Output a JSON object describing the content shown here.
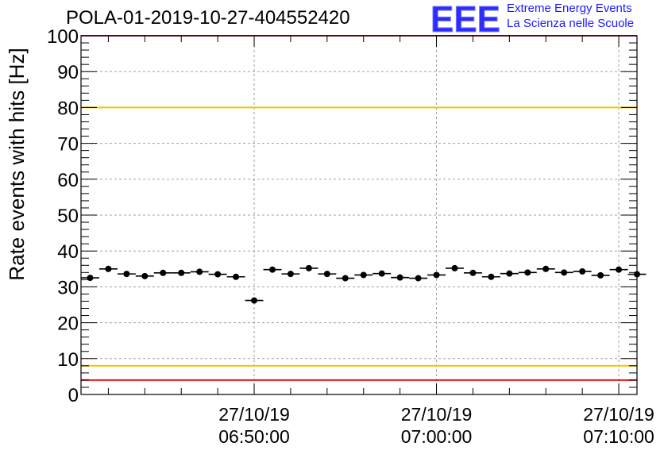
{
  "header": {
    "title": "POLA-01-2019-10-27-404552420"
  },
  "logo": {
    "letters": "EEE",
    "line1": "Extreme Energy Events",
    "line2": "La Scienza nelle Scuole",
    "color": "#1a1aff"
  },
  "chart_data": {
    "type": "scatter",
    "title": "POLA-01-2019-10-27-404552420",
    "xlabel": "",
    "ylabel": "Rate events with hits [Hz]",
    "ylim": [
      0,
      100
    ],
    "xlim": [
      "06:40:30",
      "07:11:00"
    ],
    "grid": true,
    "error_bars": "horizontal",
    "y_ticks": [
      0,
      10,
      20,
      30,
      40,
      50,
      60,
      70,
      80,
      90,
      100
    ],
    "x_ticks": [
      {
        "date": "27/10/19",
        "time": "06:50:00"
      },
      {
        "date": "27/10/19",
        "time": "07:00:00"
      },
      {
        "date": "27/10/19",
        "time": "07:10:00"
      }
    ],
    "reference_lines": [
      {
        "y": 80,
        "color": "#f0c800"
      },
      {
        "y": 8,
        "color": "#f0c800"
      },
      {
        "y": 4,
        "color": "#e8161d"
      },
      {
        "y": 100,
        "color": "#e8161d"
      }
    ],
    "series": [
      {
        "color": "#000000",
        "x": [
          "06:41:00",
          "06:42:00",
          "06:43:00",
          "06:44:00",
          "06:45:00",
          "06:46:00",
          "06:47:00",
          "06:48:00",
          "06:49:00",
          "06:50:00",
          "06:51:00",
          "06:52:00",
          "06:53:00",
          "06:54:00",
          "06:55:00",
          "06:56:00",
          "06:57:00",
          "06:58:00",
          "06:59:00",
          "07:00:00",
          "07:01:00",
          "07:02:00",
          "07:03:00",
          "07:04:00",
          "07:05:00",
          "07:06:00",
          "07:07:00",
          "07:08:00",
          "07:09:00",
          "07:10:00",
          "07:11:00"
        ],
        "values": [
          32.5,
          35.0,
          33.6,
          33.0,
          33.9,
          33.9,
          34.2,
          33.5,
          32.8,
          26.2,
          34.8,
          33.6,
          35.2,
          33.6,
          32.4,
          33.3,
          33.7,
          32.6,
          32.4,
          33.3,
          35.2,
          33.9,
          32.8,
          33.7,
          34.0,
          35.0,
          34.0,
          34.3,
          33.2,
          34.8,
          33.5
        ]
      }
    ]
  }
}
